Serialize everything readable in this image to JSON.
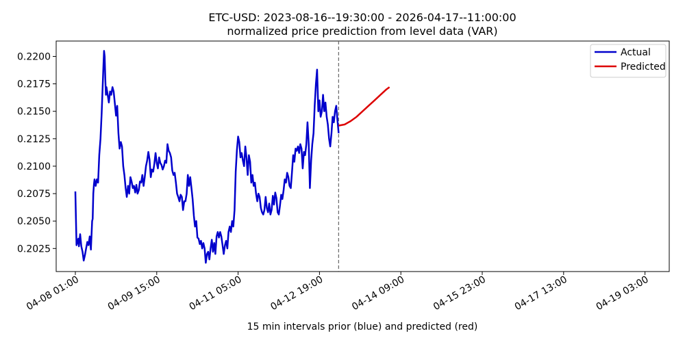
{
  "chart_data": {
    "type": "line",
    "title": "ETC-USD: 2023-08-16--19:30:00 - 2026-04-17--11:00:00",
    "subtitle": "normalized price prediction from level data (VAR)",
    "xlabel": "15 min intervals prior (blue) and predicted (red)",
    "ylabel": "",
    "ylim": [
      0.2004,
      0.2214
    ],
    "x_tick_labels": [
      "04-08 01:00",
      "04-09 15:00",
      "04-11 05:00",
      "04-12 19:00",
      "04-14 09:00",
      "04-15 23:00",
      "04-17 13:00",
      "04-19 03:00"
    ],
    "y_ticks": [
      0.2025,
      0.205,
      0.2075,
      0.21,
      0.2125,
      0.215,
      0.2175,
      0.22
    ],
    "y_tick_labels": [
      "0.2025",
      "0.2050",
      "0.2075",
      "0.2100",
      "0.2125",
      "0.2150",
      "0.2175",
      "0.2200"
    ],
    "legend": {
      "position": "top-right",
      "entries": [
        "Actual",
        "Predicted"
      ]
    },
    "grid": false,
    "series": [
      {
        "name": "Actual",
        "color": "#0000cc",
        "points": [
          [
            0,
            0.2077
          ],
          [
            2,
            0.2028
          ],
          [
            4,
            0.2032
          ],
          [
            5,
            0.2034
          ],
          [
            6,
            0.2027
          ],
          [
            8,
            0.2038
          ],
          [
            10,
            0.2027
          ],
          [
            12,
            0.2022
          ],
          [
            14,
            0.2014
          ],
          [
            16,
            0.2019
          ],
          [
            18,
            0.2025
          ],
          [
            20,
            0.2031
          ],
          [
            22,
            0.2028
          ],
          [
            24,
            0.2036
          ],
          [
            26,
            0.2024
          ],
          [
            28,
            0.205
          ],
          [
            29,
            0.2052
          ],
          [
            30,
            0.2075
          ],
          [
            31,
            0.2083
          ],
          [
            32,
            0.2088
          ],
          [
            34,
            0.2082
          ],
          [
            36,
            0.2088
          ],
          [
            38,
            0.2085
          ],
          [
            40,
            0.211
          ],
          [
            42,
            0.2125
          ],
          [
            44,
            0.2148
          ],
          [
            46,
            0.2178
          ],
          [
            47,
            0.2193
          ],
          [
            48,
            0.2205
          ],
          [
            49,
            0.22
          ],
          [
            50,
            0.218
          ],
          [
            51,
            0.2165
          ],
          [
            52,
            0.2172
          ],
          [
            54,
            0.2165
          ],
          [
            56,
            0.2158
          ],
          [
            58,
            0.2168
          ],
          [
            60,
            0.2165
          ],
          [
            62,
            0.2172
          ],
          [
            64,
            0.2168
          ],
          [
            66,
            0.2157
          ],
          [
            68,
            0.2146
          ],
          [
            70,
            0.2155
          ],
          [
            72,
            0.213
          ],
          [
            74,
            0.2116
          ],
          [
            76,
            0.2122
          ],
          [
            78,
            0.2118
          ],
          [
            80,
            0.21
          ],
          [
            82,
            0.2092
          ],
          [
            84,
            0.208
          ],
          [
            86,
            0.2072
          ],
          [
            88,
            0.2082
          ],
          [
            90,
            0.2075
          ],
          [
            92,
            0.209
          ],
          [
            94,
            0.2086
          ],
          [
            96,
            0.208
          ],
          [
            98,
            0.2082
          ],
          [
            100,
            0.2076
          ],
          [
            102,
            0.2083
          ],
          [
            104,
            0.2075
          ],
          [
            106,
            0.2078
          ],
          [
            108,
            0.2086
          ],
          [
            110,
            0.2085
          ],
          [
            112,
            0.2092
          ],
          [
            114,
            0.2082
          ],
          [
            116,
            0.209
          ],
          [
            118,
            0.21
          ],
          [
            120,
            0.2105
          ],
          [
            122,
            0.2113
          ],
          [
            124,
            0.2106
          ],
          [
            126,
            0.209
          ],
          [
            128,
            0.2097
          ],
          [
            130,
            0.2095
          ],
          [
            132,
            0.2102
          ],
          [
            134,
            0.2112
          ],
          [
            136,
            0.2103
          ],
          [
            138,
            0.2098
          ],
          [
            140,
            0.2108
          ],
          [
            142,
            0.2103
          ],
          [
            144,
            0.2101
          ],
          [
            146,
            0.2097
          ],
          [
            148,
            0.21
          ],
          [
            150,
            0.2105
          ],
          [
            152,
            0.2103
          ],
          [
            154,
            0.212
          ],
          [
            156,
            0.2114
          ],
          [
            158,
            0.2112
          ],
          [
            160,
            0.2108
          ],
          [
            162,
            0.2096
          ],
          [
            164,
            0.2092
          ],
          [
            166,
            0.2094
          ],
          [
            168,
            0.2085
          ],
          [
            170,
            0.2075
          ],
          [
            172,
            0.2072
          ],
          [
            174,
            0.2068
          ],
          [
            176,
            0.2074
          ],
          [
            178,
            0.2072
          ],
          [
            180,
            0.206
          ],
          [
            182,
            0.2068
          ],
          [
            184,
            0.2068
          ],
          [
            186,
            0.2075
          ],
          [
            188,
            0.2092
          ],
          [
            190,
            0.2082
          ],
          [
            192,
            0.209
          ],
          [
            194,
            0.208
          ],
          [
            196,
            0.207
          ],
          [
            198,
            0.2055
          ],
          [
            200,
            0.2045
          ],
          [
            202,
            0.205
          ],
          [
            204,
            0.2035
          ],
          [
            206,
            0.2034
          ],
          [
            208,
            0.2029
          ],
          [
            210,
            0.2032
          ],
          [
            212,
            0.2025
          ],
          [
            214,
            0.203
          ],
          [
            216,
            0.2025
          ],
          [
            218,
            0.2012
          ],
          [
            220,
            0.202
          ],
          [
            222,
            0.2022
          ],
          [
            224,
            0.2015
          ],
          [
            226,
            0.2025
          ],
          [
            228,
            0.2033
          ],
          [
            230,
            0.2022
          ],
          [
            232,
            0.203
          ],
          [
            234,
            0.202
          ],
          [
            236,
            0.2036
          ],
          [
            238,
            0.204
          ],
          [
            240,
            0.2035
          ],
          [
            242,
            0.204
          ],
          [
            244,
            0.2036
          ],
          [
            246,
            0.2028
          ],
          [
            248,
            0.202
          ],
          [
            250,
            0.2028
          ],
          [
            252,
            0.2032
          ],
          [
            254,
            0.2025
          ],
          [
            256,
            0.204
          ],
          [
            258,
            0.2045
          ],
          [
            260,
            0.204
          ],
          [
            262,
            0.205
          ],
          [
            264,
            0.2045
          ],
          [
            266,
            0.206
          ],
          [
            268,
            0.2095
          ],
          [
            270,
            0.2115
          ],
          [
            272,
            0.2127
          ],
          [
            274,
            0.2122
          ],
          [
            276,
            0.2108
          ],
          [
            278,
            0.2112
          ],
          [
            280,
            0.2105
          ],
          [
            282,
            0.21
          ],
          [
            284,
            0.2118
          ],
          [
            286,
            0.2108
          ],
          [
            288,
            0.2092
          ],
          [
            290,
            0.211
          ],
          [
            292,
            0.2104
          ],
          [
            294,
            0.2085
          ],
          [
            296,
            0.2092
          ],
          [
            298,
            0.2082
          ],
          [
            300,
            0.2085
          ],
          [
            302,
            0.2075
          ],
          [
            304,
            0.2068
          ],
          [
            306,
            0.2075
          ],
          [
            308,
            0.2072
          ],
          [
            310,
            0.2062
          ],
          [
            312,
            0.2058
          ],
          [
            314,
            0.2056
          ],
          [
            316,
            0.206
          ],
          [
            318,
            0.2072
          ],
          [
            320,
            0.2062
          ],
          [
            322,
            0.2058
          ],
          [
            324,
            0.2066
          ],
          [
            326,
            0.2056
          ],
          [
            328,
            0.206
          ],
          [
            330,
            0.2073
          ],
          [
            332,
            0.2065
          ],
          [
            334,
            0.2076
          ],
          [
            336,
            0.2071
          ],
          [
            338,
            0.2058
          ],
          [
            340,
            0.2056
          ],
          [
            342,
            0.2064
          ],
          [
            344,
            0.2074
          ],
          [
            346,
            0.207
          ],
          [
            348,
            0.2078
          ],
          [
            350,
            0.2088
          ],
          [
            352,
            0.2085
          ],
          [
            354,
            0.2094
          ],
          [
            356,
            0.209
          ],
          [
            358,
            0.2082
          ],
          [
            360,
            0.208
          ],
          [
            362,
            0.2094
          ],
          [
            364,
            0.211
          ],
          [
            366,
            0.2104
          ],
          [
            368,
            0.2116
          ],
          [
            370,
            0.2114
          ],
          [
            372,
            0.2118
          ],
          [
            374,
            0.2112
          ],
          [
            376,
            0.212
          ],
          [
            378,
            0.2116
          ],
          [
            380,
            0.2098
          ],
          [
            382,
            0.2113
          ],
          [
            384,
            0.211
          ],
          [
            386,
            0.212
          ],
          [
            388,
            0.214
          ],
          [
            390,
            0.212
          ],
          [
            392,
            0.208
          ],
          [
            394,
            0.2105
          ],
          [
            396,
            0.212
          ],
          [
            398,
            0.213
          ],
          [
            400,
            0.2155
          ],
          [
            402,
            0.2175
          ],
          [
            404,
            0.2188
          ],
          [
            406,
            0.215
          ],
          [
            408,
            0.216
          ],
          [
            410,
            0.2145
          ],
          [
            412,
            0.215
          ],
          [
            414,
            0.2165
          ],
          [
            416,
            0.215
          ],
          [
            418,
            0.2158
          ],
          [
            420,
            0.2145
          ],
          [
            422,
            0.2138
          ],
          [
            424,
            0.2125
          ],
          [
            426,
            0.2118
          ],
          [
            428,
            0.213
          ],
          [
            430,
            0.2145
          ],
          [
            432,
            0.214
          ],
          [
            434,
            0.215
          ],
          [
            436,
            0.2155
          ],
          [
            438,
            0.2142
          ],
          [
            440,
            0.213
          ]
        ]
      },
      {
        "name": "Predicted",
        "color": "#dd0000",
        "points": [
          [
            440,
            0.2137
          ],
          [
            450,
            0.2138
          ],
          [
            460,
            0.2141
          ],
          [
            470,
            0.2145
          ],
          [
            480,
            0.215
          ],
          [
            490,
            0.2155
          ],
          [
            500,
            0.216
          ],
          [
            510,
            0.2165
          ],
          [
            520,
            0.217
          ],
          [
            525,
            0.2172
          ]
        ]
      }
    ],
    "vline_x": 440
  }
}
